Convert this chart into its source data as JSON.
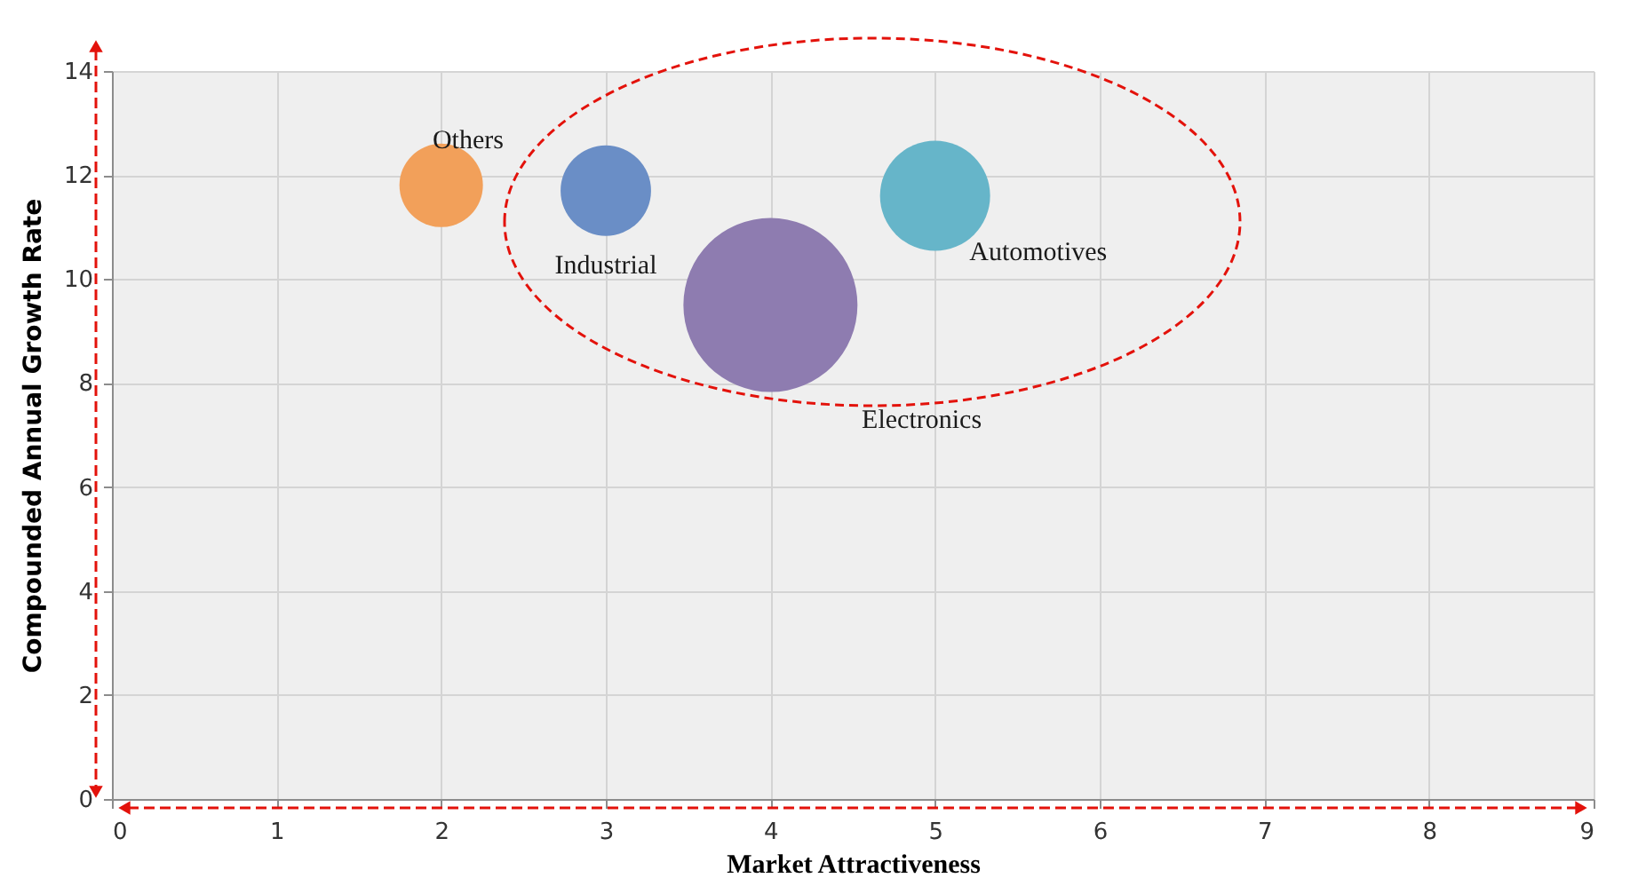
{
  "chart_data": {
    "type": "bubble",
    "xlabel": "Market Attractiveness",
    "ylabel": "Compounded Annual Growth Rate",
    "xlim": [
      0,
      9
    ],
    "xticks": [
      0,
      1,
      2,
      3,
      4,
      5,
      6,
      7,
      8,
      9
    ],
    "ylim": [
      0,
      14
    ],
    "yticks": [
      0,
      2,
      4,
      6,
      8,
      10,
      12,
      14
    ],
    "grid": true,
    "series": [
      {
        "name": "Others",
        "color": "#f2a05a",
        "x": [
          2
        ],
        "values": [
          11.8
        ],
        "sizes": [
          0.23
        ]
      },
      {
        "name": "Industrial",
        "color": "#6a8ec6",
        "x": [
          3
        ],
        "values": [
          11.7
        ],
        "sizes": [
          0.27
        ]
      },
      {
        "name": "Electronics",
        "color": "#8e7cb0",
        "x": [
          4
        ],
        "values": [
          9.5
        ],
        "sizes": [
          1
        ]
      },
      {
        "name": "Automotives",
        "color": "#66b5c9",
        "x": [
          5
        ],
        "values": [
          11.6
        ],
        "sizes": [
          0.4
        ]
      }
    ]
  }
}
